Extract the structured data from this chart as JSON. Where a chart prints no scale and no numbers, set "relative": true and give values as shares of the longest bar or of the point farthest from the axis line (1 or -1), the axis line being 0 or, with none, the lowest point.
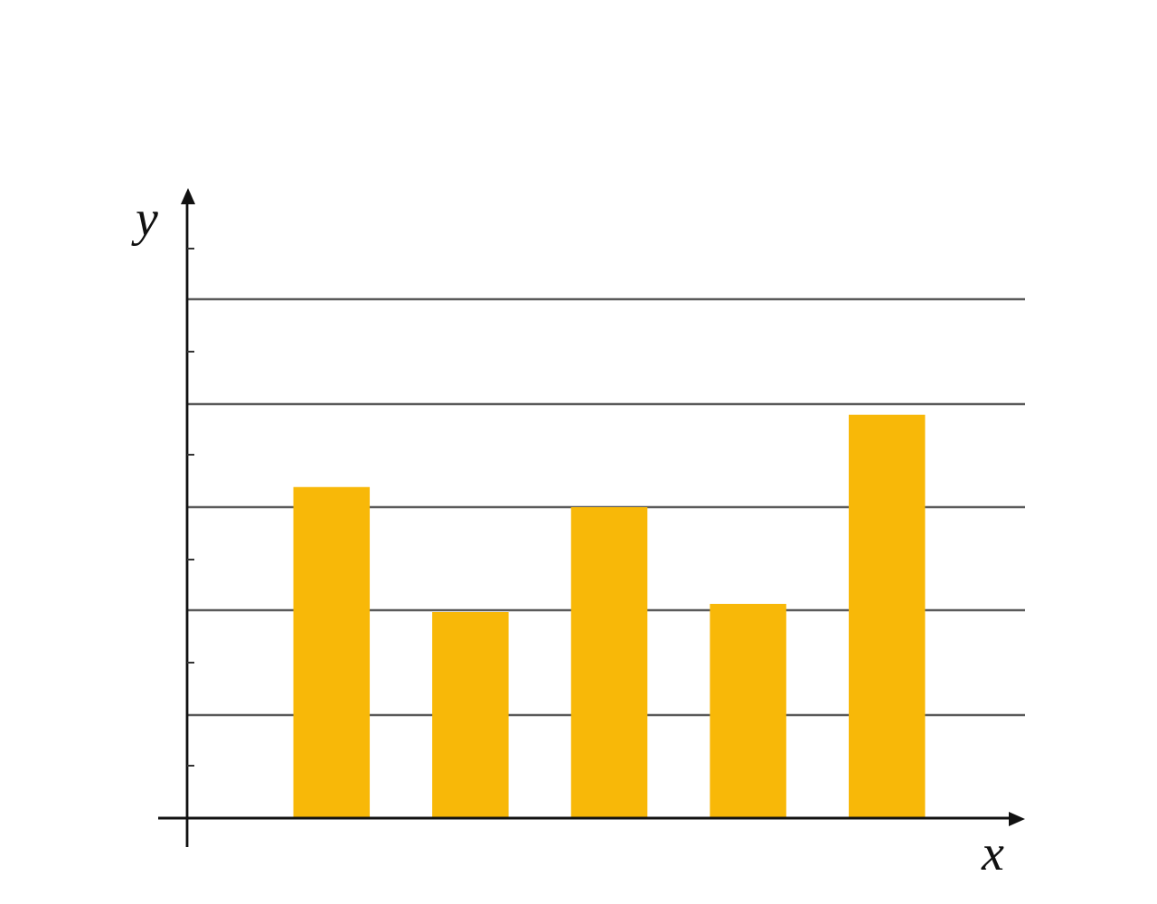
{
  "chart_data": {
    "type": "bar",
    "xlabel": "x",
    "ylabel": "y",
    "categories": [
      null,
      null,
      null,
      null,
      null
    ],
    "values": [
      0.82,
      0.51,
      0.77,
      0.53,
      1
    ],
    "color": "#f8b808",
    "relative": true,
    "grid": "y"
  }
}
